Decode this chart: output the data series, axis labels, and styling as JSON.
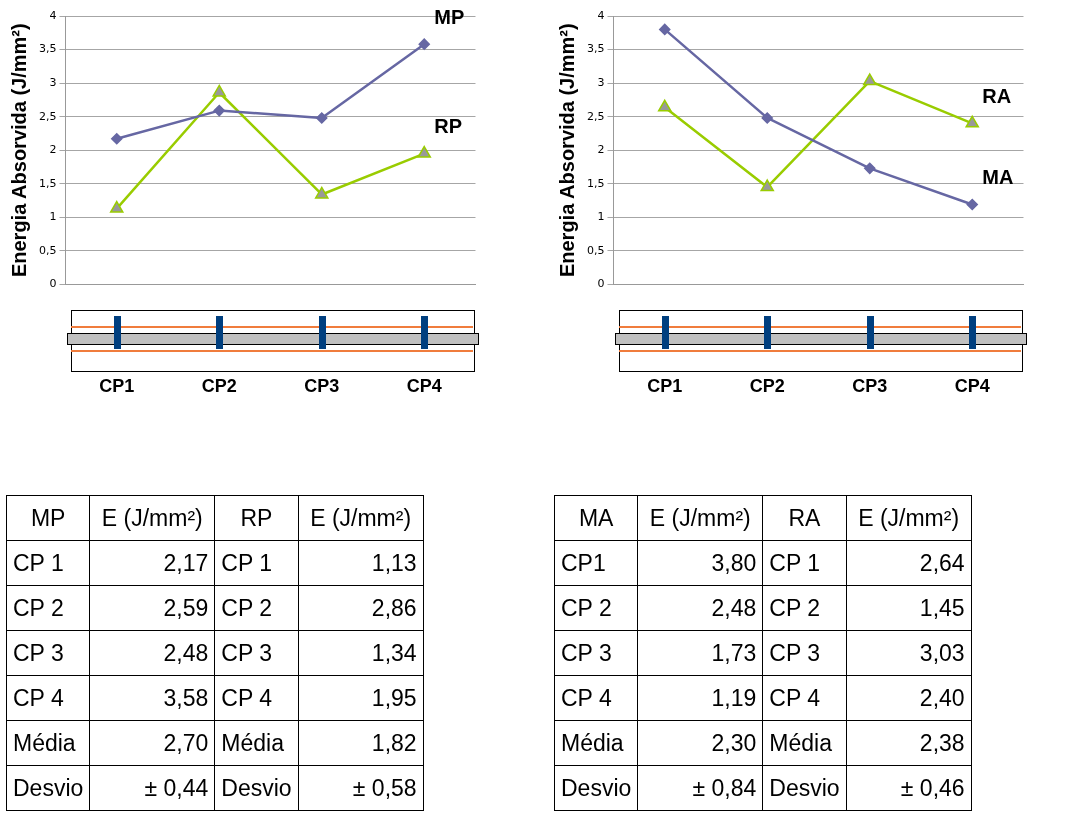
{
  "chart_data": [
    {
      "type": "line",
      "ylabel": "Energia Absorvida (J/mm²)",
      "categories": [
        "CP1",
        "CP2",
        "CP3",
        "CP4"
      ],
      "series": [
        {
          "name": "MP",
          "color": "#6667a3",
          "marker": "diamond",
          "values": [
            2.17,
            2.59,
            2.48,
            3.58
          ]
        },
        {
          "name": "RP",
          "color": "#99cc00",
          "marker": "triangle",
          "values": [
            1.13,
            2.86,
            1.34,
            1.95
          ]
        }
      ],
      "ylim": [
        0,
        4
      ],
      "yticks": [
        0,
        {
          "value": 0.5,
          "label": "0,5"
        },
        1,
        {
          "value": 1.5,
          "label": "1,5"
        },
        2,
        {
          "value": 2.5,
          "label": "2,5"
        },
        3,
        {
          "value": 3.5,
          "label": "3,5"
        },
        4
      ],
      "grid": "y",
      "legend": false,
      "annotations": [
        "E (J/mm²)",
        "CP 1",
        "2,17",
        "CP 2",
        "2,59",
        "CP 3",
        "2,48",
        "CP 4",
        "3,58",
        "Média",
        "2,70",
        "Desvio",
        "± 0,44",
        "CP 1",
        "1,13",
        "CP 2",
        "2,86",
        "CP 3",
        "1,34",
        "CP 4",
        "1,95",
        "Média",
        "1,82",
        "Desvio",
        "± 0,58"
      ]
    },
    {
      "type": "line",
      "ylabel": "Energia Absorvida (J/mm²)",
      "categories": [
        "CP1",
        "CP2",
        "CP3",
        "CP4"
      ],
      "series": [
        {
          "name": "MA",
          "color": "#6667a3",
          "marker": "diamond",
          "values": [
            3.8,
            2.48,
            1.73,
            1.19
          ]
        },
        {
          "name": "RA",
          "color": "#99cc00",
          "marker": "triangle",
          "values": [
            2.64,
            1.45,
            3.03,
            2.4
          ]
        }
      ],
      "ylim": [
        0,
        4
      ],
      "yticks": [
        0,
        {
          "value": 0.5,
          "label": "0,5"
        },
        1,
        {
          "value": 1.5,
          "label": "1,5"
        },
        2,
        {
          "value": 2.5,
          "label": "2,5"
        },
        3,
        {
          "value": 3.5,
          "label": "3,5"
        },
        4
      ],
      "grid": "y",
      "legend": false,
      "annotations": [
        "E (J/mm²)",
        "CP1",
        "3,80",
        "CP 2",
        "2,48",
        "CP 3",
        "1,73",
        "CP 4",
        "1,19",
        "Média",
        "2,30",
        "Desvio",
        "± 0,84",
        "CP 1",
        "2,64",
        "CP 2",
        "1,45",
        "CP 3",
        "3,03",
        "CP 4",
        "2,40",
        "Média",
        "2,38",
        "Desvio",
        "± 0,46"
      ]
    }
  ]
}
